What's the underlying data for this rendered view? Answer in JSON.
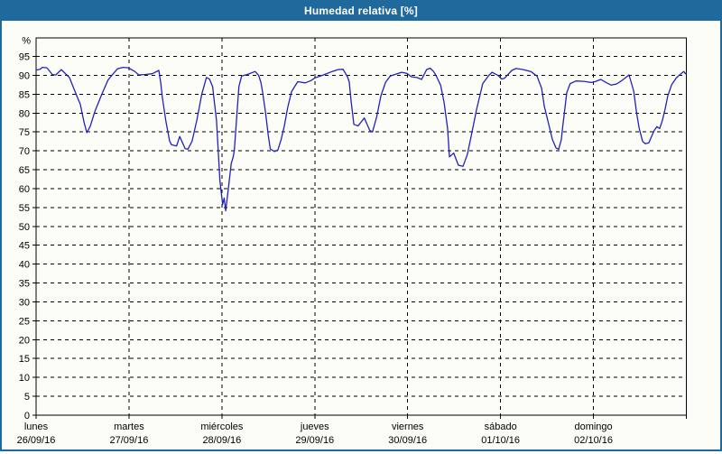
{
  "window": {
    "title": "Humedad relativa [%]",
    "title_bar_color": "#20699c",
    "border_color": "#20699c",
    "background_color": "#fcfdf7"
  },
  "chart_data": {
    "type": "line",
    "title": "Humedad relativa [%]",
    "ylabel": "%",
    "ylim": [
      0,
      95
    ],
    "ytick_step": 5,
    "yticks": [
      0,
      5,
      10,
      15,
      20,
      25,
      30,
      35,
      40,
      45,
      50,
      55,
      60,
      65,
      70,
      75,
      80,
      85,
      90,
      95
    ],
    "grid": "dashed",
    "grid_color": "#000000",
    "line_color": "#2121bb",
    "axis_color": "#000000",
    "legend": "none",
    "x_unit": "hours",
    "xlim_hours": [
      0,
      168
    ],
    "days": [
      {
        "name": "lunes",
        "date": "26/09/16"
      },
      {
        "name": "martes",
        "date": "27/09/16"
      },
      {
        "name": "miércoles",
        "date": "28/09/16"
      },
      {
        "name": "jueves",
        "date": "29/09/16"
      },
      {
        "name": "viernes",
        "date": "30/09/16"
      },
      {
        "name": "sábado",
        "date": "01/10/16"
      },
      {
        "name": "domingo",
        "date": "02/10/16"
      }
    ],
    "series": [
      {
        "name": "Humedad relativa [%]",
        "points": [
          [
            0,
            91.4
          ],
          [
            1.0,
            91.6
          ],
          [
            1.6,
            92.1
          ],
          [
            2.8,
            92.0
          ],
          [
            4.2,
            90.2
          ],
          [
            5.1,
            90.1
          ],
          [
            6.5,
            91.5
          ],
          [
            8.6,
            89.4
          ],
          [
            10.5,
            84.6
          ],
          [
            11.4,
            82.4
          ],
          [
            12.4,
            77.5
          ],
          [
            13.1,
            74.8
          ],
          [
            14.0,
            76.5
          ],
          [
            15.2,
            80.5
          ],
          [
            17.0,
            85.0
          ],
          [
            18.6,
            88.8
          ],
          [
            21.0,
            91.7
          ],
          [
            22.5,
            92.1
          ],
          [
            23.8,
            92.0
          ],
          [
            25.5,
            91.0
          ],
          [
            26.5,
            90.1
          ],
          [
            28.0,
            90.2
          ],
          [
            30.0,
            90.4
          ],
          [
            31.7,
            91.3
          ],
          [
            32.2,
            88.0
          ],
          [
            32.6,
            84.3
          ],
          [
            33.5,
            78.0
          ],
          [
            34.5,
            72.5
          ],
          [
            35.0,
            71.6
          ],
          [
            36.3,
            71.3
          ],
          [
            37.1,
            73.8
          ],
          [
            38.5,
            70.6
          ],
          [
            39.2,
            70.4
          ],
          [
            40.3,
            72.5
          ],
          [
            41.5,
            78.0
          ],
          [
            42.8,
            85.0
          ],
          [
            44.0,
            89.4
          ],
          [
            44.8,
            89.0
          ],
          [
            45.6,
            87.0
          ],
          [
            46.6,
            78.0
          ],
          [
            47.5,
            62.0
          ],
          [
            48.2,
            55.8
          ],
          [
            48.6,
            57.5
          ],
          [
            49.0,
            54.1
          ],
          [
            49.9,
            62.0
          ],
          [
            50.4,
            66.6
          ],
          [
            50.9,
            68.3
          ],
          [
            51.2,
            70.0
          ],
          [
            51.9,
            80.0
          ],
          [
            52.4,
            87.0
          ],
          [
            53.1,
            89.8
          ],
          [
            54.5,
            90.2
          ],
          [
            56.6,
            91.0
          ],
          [
            57.5,
            90.0
          ],
          [
            58.1,
            88.0
          ],
          [
            58.6,
            85.0
          ],
          [
            59.3,
            80.0
          ],
          [
            60.0,
            74.0
          ],
          [
            60.5,
            70.5
          ],
          [
            61.6,
            69.8
          ],
          [
            62.5,
            70.3
          ],
          [
            63.3,
            73.0
          ],
          [
            64.1,
            76.4
          ],
          [
            65.0,
            81.5
          ],
          [
            66.0,
            85.7
          ],
          [
            67.6,
            88.3
          ],
          [
            69.5,
            88.0
          ],
          [
            71.0,
            88.6
          ],
          [
            72.0,
            89.3
          ],
          [
            74.0,
            90.0
          ],
          [
            76.5,
            91.0
          ],
          [
            78.0,
            91.5
          ],
          [
            79.3,
            91.6
          ],
          [
            80.5,
            89.5
          ],
          [
            80.9,
            88.2
          ],
          [
            81.4,
            83.0
          ],
          [
            82.1,
            77.0
          ],
          [
            83.2,
            76.6
          ],
          [
            84.8,
            78.7
          ],
          [
            86.2,
            75.4
          ],
          [
            86.9,
            75.0
          ],
          [
            88.0,
            79.0
          ],
          [
            89.1,
            84.6
          ],
          [
            90.3,
            88.2
          ],
          [
            91.5,
            89.8
          ],
          [
            94.4,
            90.8
          ],
          [
            95.8,
            90.5
          ],
          [
            97.0,
            89.6
          ],
          [
            98.4,
            89.4
          ],
          [
            99.6,
            88.9
          ],
          [
            100.9,
            91.5
          ],
          [
            101.8,
            91.9
          ],
          [
            102.7,
            91.0
          ],
          [
            103.3,
            90.0
          ],
          [
            104.5,
            87.4
          ],
          [
            105.4,
            82.9
          ],
          [
            106.3,
            76.0
          ],
          [
            106.8,
            68.4
          ],
          [
            107.9,
            69.4
          ],
          [
            109.1,
            66.2
          ],
          [
            110.3,
            65.9
          ],
          [
            111.4,
            69.0
          ],
          [
            112.4,
            73.8
          ],
          [
            113.8,
            81.0
          ],
          [
            115.4,
            87.8
          ],
          [
            117.0,
            90.0
          ],
          [
            117.8,
            90.8
          ],
          [
            119.3,
            90.0
          ],
          [
            120.3,
            89.0
          ],
          [
            121.0,
            89.2
          ],
          [
            122.9,
            91.3
          ],
          [
            124.0,
            91.8
          ],
          [
            125.9,
            91.5
          ],
          [
            127.8,
            91.0
          ],
          [
            129.4,
            89.8
          ],
          [
            130.6,
            86.6
          ],
          [
            131.3,
            81.8
          ],
          [
            132.2,
            78.0
          ],
          [
            133.4,
            73.0
          ],
          [
            134.3,
            70.8
          ],
          [
            135.0,
            70.4
          ],
          [
            135.7,
            73.0
          ],
          [
            136.0,
            76.0
          ],
          [
            136.6,
            81.0
          ],
          [
            137.1,
            85.4
          ],
          [
            138.0,
            87.8
          ],
          [
            139.5,
            88.5
          ],
          [
            141.5,
            88.4
          ],
          [
            143.4,
            88.1
          ],
          [
            144.4,
            88.3
          ],
          [
            145.9,
            88.9
          ],
          [
            147.4,
            88.0
          ],
          [
            148.6,
            87.4
          ],
          [
            150.0,
            87.7
          ],
          [
            151.6,
            88.8
          ],
          [
            153.2,
            90.1
          ],
          [
            154.4,
            85.8
          ],
          [
            155.1,
            80.3
          ],
          [
            155.8,
            76.0
          ],
          [
            156.7,
            72.5
          ],
          [
            157.4,
            71.9
          ],
          [
            158.3,
            72.1
          ],
          [
            159.7,
            75.4
          ],
          [
            160.4,
            76.4
          ],
          [
            161.1,
            75.9
          ],
          [
            161.8,
            78.0
          ],
          [
            162.5,
            81.0
          ],
          [
            163.2,
            84.5
          ],
          [
            164.2,
            87.5
          ],
          [
            165.4,
            89.3
          ],
          [
            166.6,
            90.4
          ],
          [
            167.3,
            91.0
          ],
          [
            167.8,
            90.4
          ],
          [
            168.0,
            90.6
          ]
        ]
      }
    ]
  }
}
